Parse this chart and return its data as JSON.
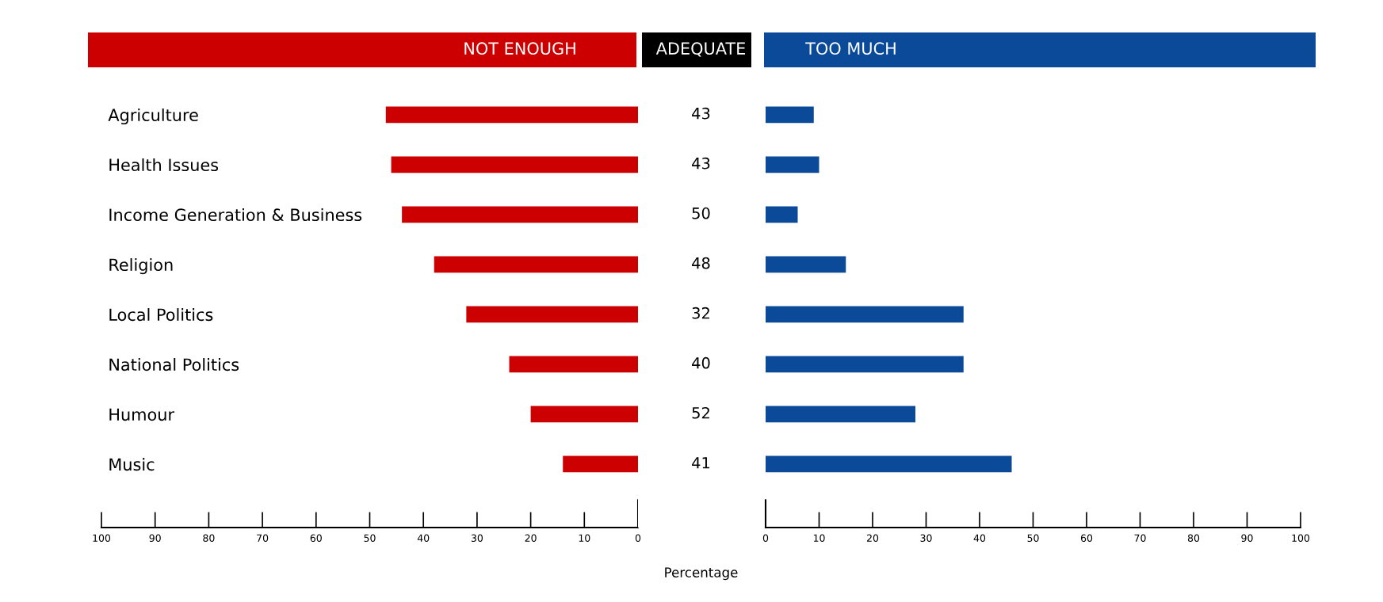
{
  "chart_data": [
    {
      "type": "bar",
      "orientation": "horizontal",
      "title": "NOT ENOUGH",
      "categories": [
        "Agriculture",
        "Health Issues",
        "Income Generation & Business",
        "Religion",
        "Local Politics",
        "National Politics",
        "Humour",
        "Music"
      ],
      "series": [
        {
          "color": "#cc0000",
          "values": [
            47,
            46,
            44,
            38,
            32,
            24,
            20,
            14
          ]
        }
      ],
      "xlim": [
        100,
        0
      ],
      "xticks": [
        100,
        90,
        80,
        70,
        60,
        50,
        40,
        30,
        20,
        10,
        0
      ]
    },
    {
      "type": "other",
      "title": "ADEQUATE",
      "xlabel": "Percentage",
      "series": [
        {
          "color": "#000000",
          "values": [
            43,
            43,
            50,
            48,
            32,
            40,
            52,
            41
          ]
        }
      ],
      "data_labels": true
    },
    {
      "type": "bar",
      "orientation": "horizontal",
      "title": "TOO MUCH",
      "series": [
        {
          "color": "#0a4a99",
          "values": [
            9,
            10,
            6,
            15,
            37,
            37,
            28,
            46
          ]
        }
      ],
      "xlim": [
        0,
        100
      ],
      "xticks": [
        0,
        10,
        20,
        30,
        40,
        50,
        60,
        70,
        80,
        90,
        100
      ],
      "tick_labels": "x"
    }
  ]
}
